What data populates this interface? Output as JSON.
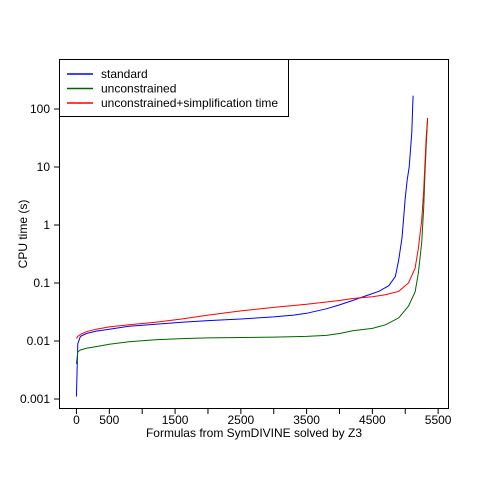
{
  "chart_data": {
    "type": "line",
    "title": "",
    "xlabel": "Formulas from SymDIVINE solved by Z3",
    "ylabel": "CPU time (s)",
    "xlim": [
      -250,
      5650
    ],
    "ylim": [
      0.0007,
      700
    ],
    "yscale": "log",
    "grid": false,
    "legend_position": "top-left",
    "xticks": [
      0,
      500,
      1500,
      2500,
      3500,
      4500,
      5500
    ],
    "xtick_labels": [
      "0",
      "500",
      "1500",
      "2500",
      "3500",
      "4500",
      "5500"
    ],
    "x_minor_ticks": [
      1000,
      2000,
      3000,
      4000,
      5000
    ],
    "yticks": [
      0.001,
      0.01,
      0.1,
      1,
      10,
      100
    ],
    "ytick_labels": [
      "0.001",
      "0.01",
      "0.1",
      "1",
      "10",
      "100"
    ],
    "series": [
      {
        "name": "standard",
        "color": "#0000ff",
        "x": [
          0,
          20,
          60,
          150,
          300,
          500,
          800,
          1200,
          1600,
          2000,
          2500,
          3000,
          3300,
          3500,
          3800,
          4000,
          4200,
          4400,
          4600,
          4750,
          4850,
          4900,
          4950,
          4980,
          5000,
          5030,
          5060,
          5080,
          5100,
          5110,
          5120
        ],
        "y": [
          0.0011,
          0.009,
          0.012,
          0.0135,
          0.0148,
          0.016,
          0.018,
          0.0195,
          0.021,
          0.0225,
          0.024,
          0.026,
          0.028,
          0.03,
          0.036,
          0.042,
          0.05,
          0.06,
          0.072,
          0.09,
          0.13,
          0.25,
          0.6,
          1.5,
          3.0,
          6.0,
          10.0,
          20.0,
          40.0,
          90.0,
          170.0
        ]
      },
      {
        "name": "unconstrained",
        "color": "#006400",
        "x": [
          0,
          20,
          60,
          150,
          300,
          500,
          800,
          1200,
          1600,
          2000,
          2500,
          3000,
          3500,
          3800,
          4000,
          4200,
          4500,
          4700,
          4900,
          5050,
          5150,
          5200,
          5250,
          5280,
          5300,
          5320,
          5340
        ],
        "y": [
          0.004,
          0.0065,
          0.007,
          0.0075,
          0.008,
          0.0088,
          0.0097,
          0.0105,
          0.011,
          0.0113,
          0.0115,
          0.0117,
          0.012,
          0.0125,
          0.0135,
          0.015,
          0.0165,
          0.019,
          0.025,
          0.04,
          0.07,
          0.15,
          0.5,
          2.0,
          8.0,
          25.0,
          70.0
        ]
      },
      {
        "name": "unconstrained+simplification time",
        "color": "#ff0000",
        "x": [
          0,
          20,
          60,
          150,
          300,
          500,
          800,
          1200,
          1600,
          2000,
          2500,
          3000,
          3500,
          3800,
          4000,
          4200,
          4500,
          4700,
          4900,
          5050,
          5150,
          5200,
          5250,
          5280,
          5300,
          5320,
          5340
        ],
        "y": [
          0.011,
          0.012,
          0.013,
          0.0145,
          0.016,
          0.0175,
          0.019,
          0.021,
          0.024,
          0.028,
          0.033,
          0.038,
          0.043,
          0.047,
          0.05,
          0.054,
          0.058,
          0.063,
          0.072,
          0.1,
          0.18,
          0.4,
          1.2,
          4.0,
          12.0,
          35.0,
          70.0
        ]
      }
    ]
  }
}
